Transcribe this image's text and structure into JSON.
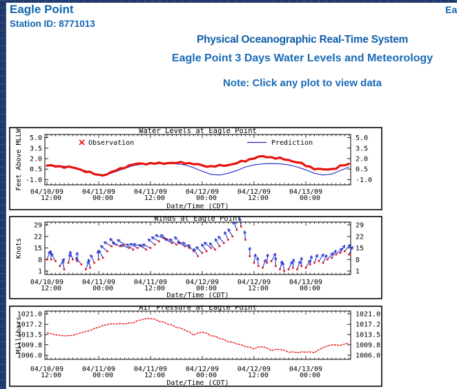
{
  "header": {
    "station_name": "Eagle Point",
    "station_id": "Station ID: 8771013",
    "top_right": "Eagle Point",
    "system_title": "Physical Oceanographic Real-Time System",
    "page_title": "Eagle Point 3 Days Water Levels and Meteorology",
    "note": "Note: Click any plot to view data"
  },
  "colors": {
    "observation_red": "#e8100c",
    "prediction_blue": "#2222cc",
    "wind_barb_blue": "#2233cc",
    "header_dark_blue": "#0e5ea9",
    "header_blue": "#1a6bb8",
    "chrome_navy": "#22396b",
    "axis_black": "#000000"
  },
  "chart_data": [
    {
      "type": "line",
      "name": "water-levels",
      "title": "Water Levels at Eagle Point",
      "ylabel": "Feet Above MLLW",
      "xlabel": "Date/Time (CDT)",
      "ytick_values": [
        5.0,
        3.5,
        2.0,
        0.5,
        -1.0
      ],
      "ytick_labels": [
        "5.0",
        "3.5",
        "2.0",
        "0.5",
        "-1.0"
      ],
      "ylim": [
        -1.75,
        5.45
      ],
      "xtick_labels": [
        [
          "04/10/09",
          "12:00"
        ],
        [
          "04/11/09",
          "00:00"
        ],
        [
          "04/11/09",
          "12:00"
        ],
        [
          "04/12/09",
          "00:00"
        ],
        [
          "04/12/09",
          "12:00"
        ],
        [
          "04/13/09",
          "00:00"
        ]
      ],
      "x_start_hour": 0,
      "x_step_hours": 2,
      "legend_position": "top-inside",
      "grid": false,
      "series": [
        {
          "name": "Observation",
          "marker": "x",
          "color_key": "observation_red",
          "values": [
            1.0,
            0.9,
            0.85,
            0.7,
            0.4,
            0.0,
            -0.4,
            -0.2,
            0.3,
            0.8,
            1.15,
            1.3,
            1.3,
            1.3,
            1.4,
            1.35,
            1.45,
            1.25,
            1.0,
            0.9,
            0.95,
            1.1,
            1.35,
            1.7,
            2.1,
            2.3,
            2.2,
            2.0,
            1.8,
            1.5,
            1.0,
            0.6,
            0.4,
            0.5,
            0.9,
            1.2
          ]
        },
        {
          "name": "Prediction",
          "marker": "line",
          "color_key": "prediction_blue",
          "values": [
            1.05,
            1.0,
            0.9,
            0.75,
            0.45,
            0.05,
            -0.3,
            -0.25,
            0.15,
            0.6,
            1.0,
            1.2,
            1.3,
            1.3,
            1.3,
            1.25,
            1.1,
            0.7,
            0.2,
            -0.25,
            -0.35,
            -0.1,
            0.3,
            0.8,
            1.1,
            1.25,
            1.3,
            1.25,
            1.1,
            0.8,
            0.4,
            -0.1,
            -0.35,
            -0.2,
            0.3,
            0.8
          ]
        }
      ]
    },
    {
      "type": "scatter",
      "name": "winds",
      "title": "Winds at Eagle Point",
      "ylabel": "Knots",
      "xlabel": "Date/Time (CDT)",
      "ytick_values": [
        29,
        22,
        15,
        8,
        1
      ],
      "ytick_labels": [
        "29",
        "22",
        "15",
        "8",
        "1"
      ],
      "ylim": [
        -1.1,
        30.7
      ],
      "xtick_labels": [
        [
          "04/10/09",
          "12:00"
        ],
        [
          "04/11/09",
          "00:00"
        ],
        [
          "04/11/09",
          "12:00"
        ],
        [
          "04/12/09",
          "00:00"
        ],
        [
          "04/12/09",
          "12:00"
        ],
        [
          "04/13/09",
          "00:00"
        ]
      ],
      "x_start_hour": 0,
      "x_step_hours": 1,
      "grid": false,
      "speed_knots": [
        8,
        8,
        7,
        4,
        2,
        6,
        8,
        7,
        5,
        2,
        3,
        6,
        8,
        9,
        13,
        16,
        17,
        16,
        17,
        15,
        14,
        15,
        16,
        14,
        15,
        17,
        19,
        21,
        20,
        18,
        17,
        18,
        16,
        15,
        13,
        10,
        12,
        13,
        15,
        14,
        16,
        18,
        20,
        22,
        26,
        28,
        20,
        10,
        6,
        4,
        3,
        6,
        7,
        4,
        2,
        1,
        2,
        3,
        2,
        4,
        3,
        5,
        6,
        7,
        6,
        8,
        9,
        11,
        12,
        13,
        11
      ],
      "dir_deg": [
        70,
        95,
        120,
        60,
        100,
        80,
        110,
        90,
        130,
        70,
        100,
        115,
        95,
        120,
        140,
        150,
        135,
        155,
        145,
        160,
        140,
        150,
        165,
        145,
        155,
        140,
        150,
        160,
        145,
        150,
        140,
        135,
        150,
        140,
        130,
        120,
        135,
        125,
        140,
        130,
        120,
        130,
        115,
        120,
        110,
        100,
        95,
        90,
        80,
        95,
        70,
        85,
        60,
        90,
        75,
        100,
        65,
        85,
        70,
        90,
        60,
        80,
        70,
        55,
        65,
        50,
        60,
        45,
        60,
        50,
        65
      ]
    },
    {
      "type": "line",
      "name": "air-pressure",
      "title": "Air Pressure at Eagle Point",
      "ylabel": "Millibars",
      "xlabel": "Date/Time (CDT)",
      "ytick_values": [
        1021.0,
        1017.2,
        1013.5,
        1009.8,
        1006.0
      ],
      "ytick_labels": [
        "1021.0",
        "1017.2",
        "1013.5",
        "1009.8",
        "1006.0"
      ],
      "ylim": [
        1004.5,
        1022.0
      ],
      "xtick_labels": [
        [
          "04/10/09",
          "12:00"
        ],
        [
          "04/11/09",
          "00:00"
        ],
        [
          "04/11/09",
          "12:00"
        ],
        [
          "04/12/09",
          "00:00"
        ],
        [
          "04/12/09",
          "12:00"
        ],
        [
          "04/13/09",
          "00:00"
        ]
      ],
      "x_start_hour": 0,
      "x_step_hours": 2,
      "grid": false,
      "series": [
        {
          "name": "Air Pressure",
          "color_key": "observation_red",
          "values": [
            1014.2,
            1013.4,
            1013.0,
            1013.2,
            1014.2,
            1015.0,
            1016.2,
            1017.2,
            1017.4,
            1017.4,
            1017.8,
            1019.0,
            1019.4,
            1018.4,
            1017.4,
            1016.2,
            1015.2,
            1013.4,
            1014.5,
            1013.2,
            1012.2,
            1011.0,
            1010.2,
            1009.2,
            1008.4,
            1009.2,
            1007.8,
            1008.2,
            1007.2,
            1007.0,
            1007.2,
            1007.0,
            1008.8,
            1009.8,
            1009.6,
            1010.4
          ]
        }
      ]
    }
  ]
}
